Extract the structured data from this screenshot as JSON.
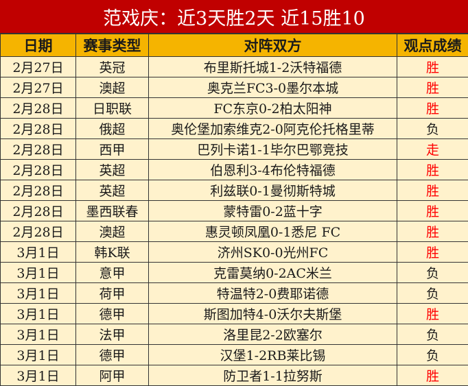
{
  "title": "范戏庆：近3天胜2天 近15胜10",
  "headers": [
    "日期",
    "赛事类型",
    "对阵双方",
    "观点成绩"
  ],
  "colors": {
    "title_bg": "#c00000",
    "header_bg": "#f5b400",
    "cell_bg": "#fff2cc",
    "win": "#ff0000"
  },
  "rows": [
    {
      "date": "2月27日",
      "league": "英冠",
      "match": "布里斯托城1-2沃特福德",
      "result": "胜"
    },
    {
      "date": "2月27日",
      "league": "澳超",
      "match": "奥克兰FC3-0墨尔本城",
      "result": "胜"
    },
    {
      "date": "2月28日",
      "league": "日职联",
      "match": "FC东京0-2柏太阳神",
      "result": "胜"
    },
    {
      "date": "2月28日",
      "league": "俄超",
      "match": "奥伦堡加索维克2-0阿克伦托格里蒂",
      "result": "负"
    },
    {
      "date": "2月28日",
      "league": "西甲",
      "match": "巴列卡诺1-1毕尔巴鄂竞技",
      "result": "走"
    },
    {
      "date": "2月28日",
      "league": "英超",
      "match": "伯恩利3-4布伦特福德",
      "result": "胜"
    },
    {
      "date": "2月28日",
      "league": "英超",
      "match": "利兹联0-1曼彻斯特城",
      "result": "胜"
    },
    {
      "date": "2月28日",
      "league": "墨西联春",
      "match": "蒙特雷0-2蓝十字",
      "result": "胜"
    },
    {
      "date": "2月28日",
      "league": "澳超",
      "match": "惠灵顿凤凰0-1悉尼 FC",
      "result": "胜"
    },
    {
      "date": "3月1日",
      "league": "韩K联",
      "match": "济州SK0-0光州FC",
      "result": "胜"
    },
    {
      "date": "3月1日",
      "league": "意甲",
      "match": "克雷莫纳0-2AC米兰",
      "result": "负"
    },
    {
      "date": "3月1日",
      "league": "荷甲",
      "match": "特温特2-0费耶诺德",
      "result": "负"
    },
    {
      "date": "3月1日",
      "league": "德甲",
      "match": "斯图加特4-0沃尔夫斯堡",
      "result": "胜"
    },
    {
      "date": "3月1日",
      "league": "法甲",
      "match": "洛里昆2-2欧塞尔",
      "result": "负"
    },
    {
      "date": "3月1日",
      "league": "德甲",
      "match": "汉堡1-2RB莱比锡",
      "result": "负"
    },
    {
      "date": "3月1日",
      "league": "阿甲",
      "match": "防卫者1-1拉努斯",
      "result": "胜"
    }
  ]
}
